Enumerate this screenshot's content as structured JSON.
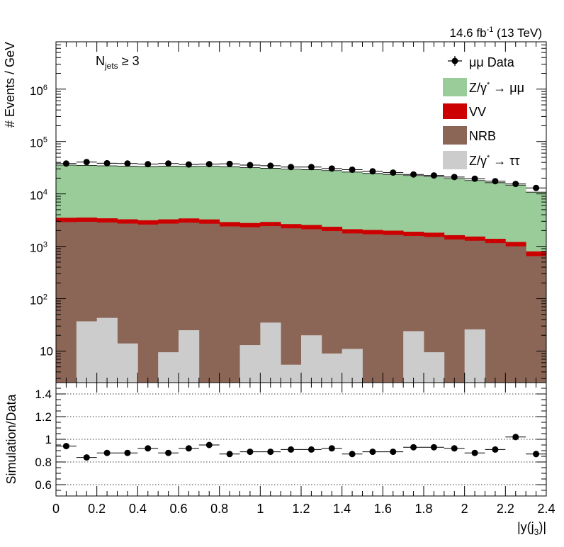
{
  "header": {
    "lumi_prefix": "14.6 fb",
    "lumi_exp": "-1",
    "lumi_suffix": " (13 TeV)"
  },
  "annotation": {
    "main": "N",
    "sub": "jets",
    "rest": " ≥ 3"
  },
  "legend": {
    "data_label": "μμ Data",
    "zmm_label_prefix": "Z/γ",
    "zmm_label_star": "*",
    "zmm_label_suffix": " → μμ",
    "vv_label": "VV",
    "nrb_label": "NRB",
    "ztt_label_prefix": "Z/γ",
    "ztt_label_star": "*",
    "ztt_label_suffix": " → ττ"
  },
  "axes": {
    "top_ylabel": "# Events / GeV",
    "bottom_ylabel": "Simulation/Data",
    "xlabel_main": "|y(j",
    "xlabel_sub": "3",
    "xlabel_end": ")|",
    "top_yticks": [
      "10",
      "10",
      "10",
      "10",
      "10"
    ],
    "top_ytick_exps": [
      "2",
      "3",
      "4",
      "5",
      "6"
    ],
    "top_ytick_plain": "10",
    "bottom_yticks": [
      "0.6",
      "0.8",
      "1",
      "1.2",
      "1.4"
    ],
    "xticks": [
      "0",
      "0.2",
      "0.4",
      "0.6",
      "0.8",
      "1",
      "1.2",
      "1.4",
      "1.6",
      "1.8",
      "2",
      "2.2",
      "2.4"
    ]
  },
  "colors": {
    "zmm": "#99cc99",
    "vv": "#cc0000",
    "nrb": "#8b6555",
    "ztt": "#cccccc",
    "data": "#000000"
  },
  "chart_data": {
    "type": "bar",
    "stacked": true,
    "log_y": true,
    "xlim": [
      0,
      2.4
    ],
    "ylim": [
      2.5,
      8000000
    ],
    "bin_edges": [
      0,
      0.1,
      0.2,
      0.3,
      0.4,
      0.5,
      0.6,
      0.7,
      0.8,
      0.9,
      1.0,
      1.1,
      1.2,
      1.3,
      1.4,
      1.5,
      1.6,
      1.7,
      1.8,
      1.9,
      2.0,
      2.1,
      2.2,
      2.3,
      2.4
    ],
    "series": [
      {
        "name": "Z/γ* → ττ",
        "values": [
          0,
          37,
          43,
          14,
          0,
          9.5,
          25,
          0,
          0,
          13,
          35,
          5.5,
          20,
          9,
          11,
          0,
          0,
          24,
          9.5,
          0,
          26,
          0,
          0,
          0
        ]
      },
      {
        "name": "NRB",
        "values": [
          2900,
          2900,
          2800,
          2700,
          2600,
          2700,
          2800,
          2700,
          2400,
          2300,
          2400,
          2200,
          2100,
          1950,
          1750,
          1700,
          1650,
          1550,
          1500,
          1350,
          1250,
          1150,
          1000,
          650
        ]
      },
      {
        "name": "VV",
        "values": [
          600,
          600,
          580,
          560,
          540,
          560,
          580,
          560,
          500,
          470,
          480,
          450,
          430,
          400,
          360,
          350,
          340,
          320,
          310,
          280,
          260,
          240,
          210,
          150
        ]
      },
      {
        "name": "Z/γ* → μμ",
        "values": [
          32000,
          31500,
          31000,
          30500,
          30000,
          30500,
          30000,
          30500,
          30000,
          29000,
          28000,
          27000,
          26500,
          25500,
          24000,
          22500,
          21500,
          20500,
          19500,
          18000,
          16500,
          15000,
          13500,
          10000
        ]
      },
      {
        "name": "μμ Data",
        "values": [
          38000,
          40500,
          38500,
          38000,
          37000,
          38000,
          36500,
          37000,
          37500,
          35500,
          34500,
          32500,
          32500,
          30500,
          29000,
          27000,
          25500,
          23500,
          22500,
          21000,
          19500,
          17500,
          15500,
          13000
        ]
      }
    ],
    "ratio": {
      "ylabel": "Simulation/Data",
      "ylim": [
        0.5,
        1.5
      ],
      "values": [
        0.94,
        0.84,
        0.88,
        0.88,
        0.92,
        0.88,
        0.92,
        0.95,
        0.87,
        0.89,
        0.89,
        0.91,
        0.91,
        0.92,
        0.87,
        0.89,
        0.89,
        0.93,
        0.93,
        0.92,
        0.88,
        0.91,
        1.02,
        0.87
      ],
      "errors": [
        0.018,
        0.018,
        0.018,
        0.018,
        0.018,
        0.018,
        0.018,
        0.018,
        0.018,
        0.018,
        0.018,
        0.018,
        0.018,
        0.018,
        0.02,
        0.02,
        0.02,
        0.02,
        0.022,
        0.022,
        0.025,
        0.025,
        0.028,
        0.03
      ],
      "gridlines": [
        0.6,
        0.8,
        1.0,
        1.2,
        1.4
      ]
    }
  }
}
